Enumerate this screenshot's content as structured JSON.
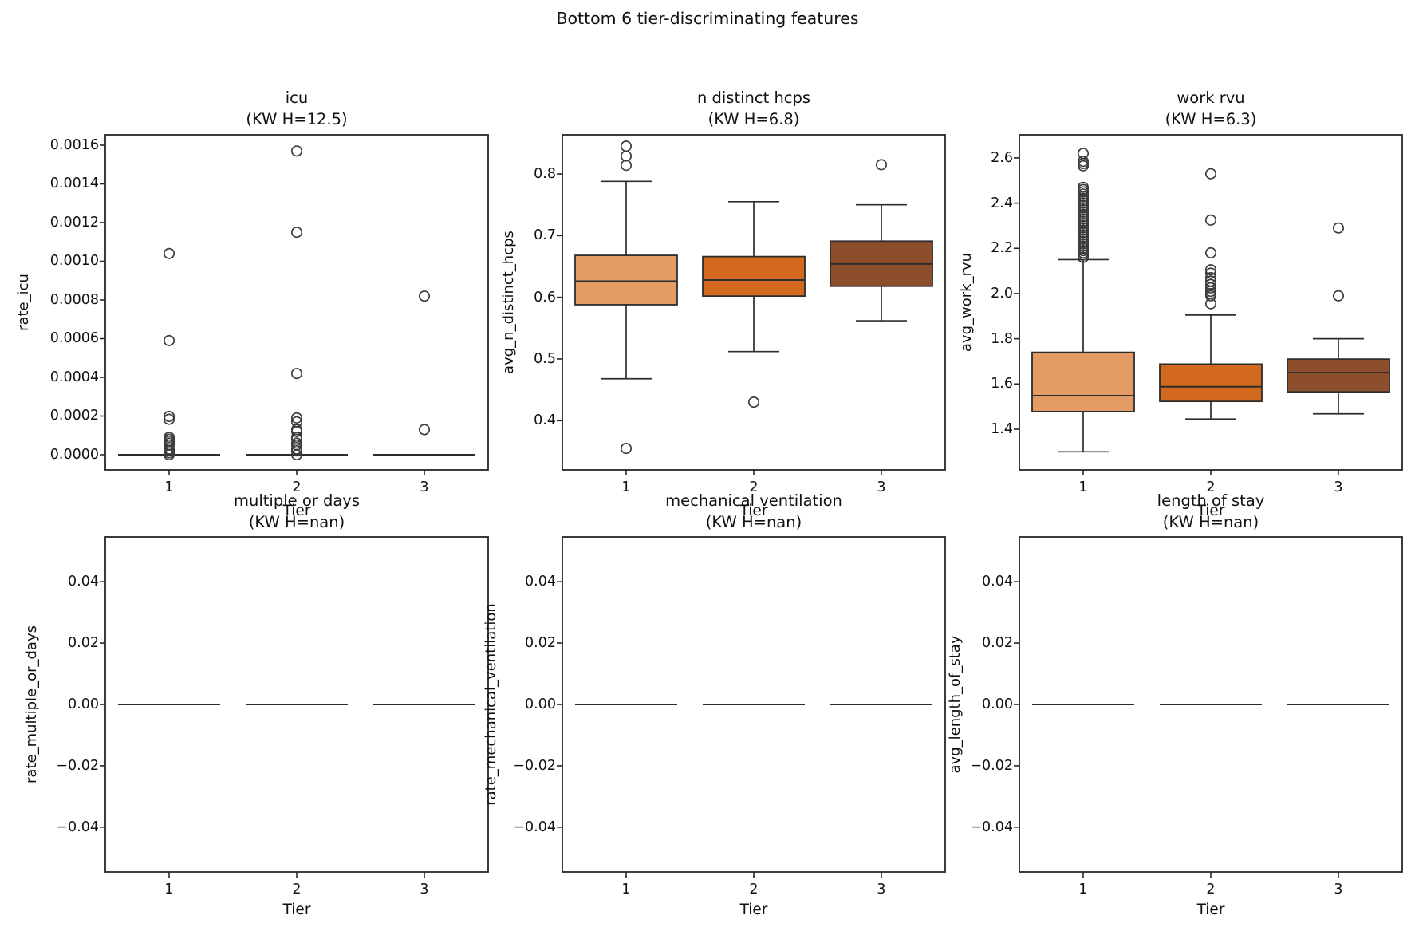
{
  "figure": {
    "title": "Bottom 6 tier-discriminating features"
  },
  "chart_data": {
    "type": "boxplot-grid",
    "title": "Bottom 6 tier-discriminating features",
    "grid": [
      2,
      3
    ],
    "xlabel": "Tier",
    "categories": [
      "1",
      "2",
      "3"
    ],
    "tier_colors": [
      "#e49c64",
      "#d2691e",
      "#8c4e2b"
    ],
    "line_color": "#2d2d2d",
    "outlier_color": "#3c3c3c",
    "legend": "none",
    "subplots": [
      {
        "title": "icu",
        "subtitle": "(KW H=12.5)",
        "kw_h": 12.5,
        "ylabel": "rate_icu",
        "ylim": [
          -7.84e-05,
          0.0016536
        ],
        "yticks": [
          0.0,
          0.0002,
          0.0004,
          0.0006,
          0.0008,
          0.001,
          0.0012,
          0.0014,
          0.0016
        ],
        "ytick_labels": [
          "0.0000",
          "0.0002",
          "0.0004",
          "0.0006",
          "0.0008",
          "0.0010",
          "0.0012",
          "0.0014",
          "0.0016"
        ],
        "boxes": [
          {
            "tier": "1",
            "whislo": 0,
            "q1": 0,
            "med": 0,
            "q3": 0,
            "whishi": 0,
            "outliers": [
              0.00104,
              0.00059,
              0.000198,
              0.000183,
              9e-05,
              8e-05,
              7e-05,
              6e-05,
              5e-05,
              3e-05,
              2e-05,
              1e-05,
              0.0
            ]
          },
          {
            "tier": "2",
            "whislo": 0,
            "q1": 0,
            "med": 0,
            "q3": 0,
            "whishi": 0,
            "outliers": [
              0.00157,
              0.00115,
              0.00042,
              0.00019,
              0.00017,
              0.00013,
              0.00012,
              9e-05,
              8e-05,
              6e-05,
              5e-05,
              3e-05,
              2e-05,
              0.0
            ]
          },
          {
            "tier": "3",
            "whislo": 0,
            "q1": 0,
            "med": 0,
            "q3": 0,
            "whishi": 0,
            "outliers": [
              0.00082,
              0.00013
            ]
          }
        ]
      },
      {
        "title": "n distinct hcps",
        "subtitle": "(KW H=6.8)",
        "kw_h": 6.8,
        "ylabel": "avg_n_distinct_hcps",
        "ylim": [
          0.3202,
          0.8634
        ],
        "yticks": [
          0.4,
          0.5,
          0.6,
          0.7,
          0.8
        ],
        "ytick_labels": [
          "0.4",
          "0.5",
          "0.6",
          "0.7",
          "0.8"
        ],
        "boxes": [
          {
            "tier": "1",
            "whislo": 0.468,
            "q1": 0.588,
            "med": 0.626,
            "q3": 0.668,
            "whishi": 0.788,
            "outliers": [
              0.845,
              0.829,
              0.814,
              0.355
            ]
          },
          {
            "tier": "2",
            "whislo": 0.512,
            "q1": 0.602,
            "med": 0.628,
            "q3": 0.666,
            "whishi": 0.755,
            "outliers": [
              0.43
            ]
          },
          {
            "tier": "3",
            "whislo": 0.562,
            "q1": 0.618,
            "med": 0.654,
            "q3": 0.691,
            "whishi": 0.75,
            "outliers": [
              0.815
            ]
          }
        ]
      },
      {
        "title": "work rvu",
        "subtitle": "(KW H=6.3)",
        "kw_h": 6.3,
        "ylabel": "avg_work_rvu",
        "ylim": [
          1.22,
          2.702
        ],
        "yticks": [
          1.4,
          1.6,
          1.8,
          2.0,
          2.2,
          2.4,
          2.6
        ],
        "ytick_labels": [
          "1.4",
          "1.6",
          "1.8",
          "2.0",
          "2.2",
          "2.4",
          "2.6"
        ],
        "boxes": [
          {
            "tier": "1",
            "whislo": 1.3,
            "q1": 1.478,
            "med": 1.548,
            "q3": 1.74,
            "whishi": 2.15,
            "outliers": [
              2.62,
              2.585,
              2.575,
              2.565,
              2.47,
              2.46,
              2.45,
              2.44,
              2.43,
              2.42,
              2.41,
              2.4,
              2.39,
              2.38,
              2.37,
              2.36,
              2.35,
              2.34,
              2.33,
              2.32,
              2.31,
              2.3,
              2.29,
              2.28,
              2.27,
              2.26,
              2.25,
              2.24,
              2.23,
              2.22,
              2.21,
              2.2,
              2.19,
              2.18,
              2.17,
              2.16
            ]
          },
          {
            "tier": "2",
            "whislo": 1.445,
            "q1": 1.523,
            "med": 1.588,
            "q3": 1.688,
            "whishi": 1.905,
            "outliers": [
              2.53,
              2.325,
              2.18,
              2.105,
              2.09,
              2.07,
              2.055,
              2.04,
              2.025,
              2.01,
              2.0,
              1.99,
              1.955
            ]
          },
          {
            "tier": "3",
            "whislo": 1.468,
            "q1": 1.565,
            "med": 1.65,
            "q3": 1.71,
            "whishi": 1.8,
            "outliers": [
              2.29,
              1.99
            ]
          }
        ]
      },
      {
        "title": "multiple or days",
        "subtitle": "(KW H=nan)",
        "kw_h": "nan",
        "ylabel": "rate_multiple_or_days",
        "ylim": [
          -0.0546,
          0.0546
        ],
        "yticks": [
          -0.04,
          -0.02,
          0.0,
          0.02,
          0.04
        ],
        "ytick_labels": [
          "−0.04",
          "−0.02",
          "0.00",
          "0.02",
          "0.04"
        ],
        "boxes": [
          {
            "tier": "1",
            "whislo": 0,
            "q1": 0,
            "med": 0,
            "q3": 0,
            "whishi": 0,
            "outliers": []
          },
          {
            "tier": "2",
            "whislo": 0,
            "q1": 0,
            "med": 0,
            "q3": 0,
            "whishi": 0,
            "outliers": []
          },
          {
            "tier": "3",
            "whislo": 0,
            "q1": 0,
            "med": 0,
            "q3": 0,
            "whishi": 0,
            "outliers": []
          }
        ]
      },
      {
        "title": "mechanical ventilation",
        "subtitle": "(KW H=nan)",
        "kw_h": "nan",
        "ylabel": "rate_mechanical_ventilation",
        "ylim": [
          -0.0546,
          0.0546
        ],
        "yticks": [
          -0.04,
          -0.02,
          0.0,
          0.02,
          0.04
        ],
        "ytick_labels": [
          "−0.04",
          "−0.02",
          "0.00",
          "0.02",
          "0.04"
        ],
        "boxes": [
          {
            "tier": "1",
            "whislo": 0,
            "q1": 0,
            "med": 0,
            "q3": 0,
            "whishi": 0,
            "outliers": []
          },
          {
            "tier": "2",
            "whislo": 0,
            "q1": 0,
            "med": 0,
            "q3": 0,
            "whishi": 0,
            "outliers": []
          },
          {
            "tier": "3",
            "whislo": 0,
            "q1": 0,
            "med": 0,
            "q3": 0,
            "whishi": 0,
            "outliers": []
          }
        ]
      },
      {
        "title": "length of stay",
        "subtitle": "(KW H=nan)",
        "kw_h": "nan",
        "ylabel": "avg_length_of_stay",
        "ylim": [
          -0.0546,
          0.0546
        ],
        "yticks": [
          -0.04,
          -0.02,
          0.0,
          0.02,
          0.04
        ],
        "ytick_labels": [
          "−0.04",
          "−0.02",
          "0.00",
          "0.02",
          "0.04"
        ],
        "boxes": [
          {
            "tier": "1",
            "whislo": 0,
            "q1": 0,
            "med": 0,
            "q3": 0,
            "whishi": 0,
            "outliers": []
          },
          {
            "tier": "2",
            "whislo": 0,
            "q1": 0,
            "med": 0,
            "q3": 0,
            "whishi": 0,
            "outliers": []
          },
          {
            "tier": "3",
            "whislo": 0,
            "q1": 0,
            "med": 0,
            "q3": 0,
            "whishi": 0,
            "outliers": []
          }
        ]
      }
    ]
  }
}
